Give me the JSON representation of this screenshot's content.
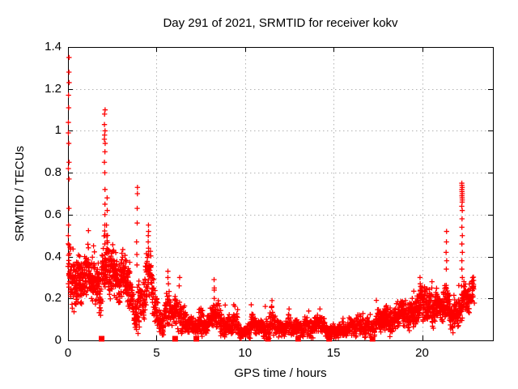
{
  "chart_data": {
    "type": "scatter",
    "title": "Day 291 of 2021, SRMTID for receiver kokv",
    "xlabel": "GPS time / hours",
    "ylabel": "SRMTID / TECUs",
    "xlim": [
      0,
      24
    ],
    "ylim": [
      0,
      1.4
    ],
    "x_tick_values": [
      0,
      5,
      10,
      15,
      20
    ],
    "x_tick_labels": [
      "0",
      "5",
      "10",
      "15",
      "20"
    ],
    "y_tick_values": [
      0,
      0.2,
      0.4,
      0.6,
      0.8,
      1,
      1.2,
      1.4
    ],
    "y_tick_labels": [
      "0",
      "0.2",
      "0.4",
      "0.6",
      "0.8",
      "1",
      "1.2",
      "1.4"
    ],
    "grid": true,
    "legend": "none",
    "marker": "plus",
    "marker_color": "#ff0000",
    "grid_color": "#b3b3b3",
    "axis_color": "#000000",
    "background_color": "#ffffff",
    "data_start_hour": 0.0,
    "data_end_hour": 22.95,
    "band_profile_hour_center_halfspread": [
      [
        0.0,
        0.3,
        0.1
      ],
      [
        0.6,
        0.29,
        0.09
      ],
      [
        1.2,
        0.3,
        0.08
      ],
      [
        1.8,
        0.26,
        0.07
      ],
      [
        2.1,
        0.36,
        0.12
      ],
      [
        2.5,
        0.32,
        0.09
      ],
      [
        3.0,
        0.3,
        0.08
      ],
      [
        3.3,
        0.3,
        0.08
      ],
      [
        3.6,
        0.18,
        0.07
      ],
      [
        3.8,
        0.12,
        0.05
      ],
      [
        3.95,
        0.22,
        0.12
      ],
      [
        4.15,
        0.16,
        0.06
      ],
      [
        4.45,
        0.3,
        0.1
      ],
      [
        4.7,
        0.28,
        0.09
      ],
      [
        4.95,
        0.15,
        0.06
      ],
      [
        5.2,
        0.09,
        0.04
      ],
      [
        5.45,
        0.12,
        0.05
      ],
      [
        5.7,
        0.16,
        0.07
      ],
      [
        5.95,
        0.11,
        0.05
      ],
      [
        6.25,
        0.14,
        0.06
      ],
      [
        6.55,
        0.1,
        0.05
      ],
      [
        6.85,
        0.07,
        0.035
      ],
      [
        7.15,
        0.055,
        0.03
      ],
      [
        7.45,
        0.1,
        0.05
      ],
      [
        7.75,
        0.07,
        0.035
      ],
      [
        8.05,
        0.09,
        0.045
      ],
      [
        8.35,
        0.13,
        0.06
      ],
      [
        8.65,
        0.09,
        0.045
      ],
      [
        9.0,
        0.07,
        0.035
      ],
      [
        9.35,
        0.08,
        0.04
      ],
      [
        9.7,
        0.05,
        0.03
      ],
      [
        10.0,
        0.04,
        0.022
      ],
      [
        10.35,
        0.07,
        0.035
      ],
      [
        10.7,
        0.06,
        0.03
      ],
      [
        11.0,
        0.05,
        0.03
      ],
      [
        11.3,
        0.08,
        0.04
      ],
      [
        11.55,
        0.09,
        0.045
      ],
      [
        11.8,
        0.055,
        0.03
      ],
      [
        12.1,
        0.05,
        0.028
      ],
      [
        12.45,
        0.08,
        0.04
      ],
      [
        12.8,
        0.055,
        0.03
      ],
      [
        13.15,
        0.05,
        0.028
      ],
      [
        13.5,
        0.075,
        0.038
      ],
      [
        13.85,
        0.055,
        0.03
      ],
      [
        14.2,
        0.08,
        0.04
      ],
      [
        14.55,
        0.05,
        0.028
      ],
      [
        14.9,
        0.045,
        0.025
      ],
      [
        15.2,
        0.035,
        0.02
      ],
      [
        15.55,
        0.05,
        0.028
      ],
      [
        15.9,
        0.065,
        0.032
      ],
      [
        16.25,
        0.075,
        0.035
      ],
      [
        16.6,
        0.06,
        0.03
      ],
      [
        16.95,
        0.065,
        0.032
      ],
      [
        17.3,
        0.07,
        0.035
      ],
      [
        17.65,
        0.09,
        0.04
      ],
      [
        18.0,
        0.1,
        0.045
      ],
      [
        18.35,
        0.095,
        0.045
      ],
      [
        18.7,
        0.115,
        0.05
      ],
      [
        19.05,
        0.11,
        0.05
      ],
      [
        19.4,
        0.13,
        0.055
      ],
      [
        19.75,
        0.16,
        0.06
      ],
      [
        20.1,
        0.17,
        0.06
      ],
      [
        20.45,
        0.15,
        0.055
      ],
      [
        20.8,
        0.17,
        0.055
      ],
      [
        21.1,
        0.15,
        0.05
      ],
      [
        21.4,
        0.16,
        0.06
      ],
      [
        21.7,
        0.13,
        0.05
      ],
      [
        22.0,
        0.125,
        0.05
      ],
      [
        22.3,
        0.17,
        0.06
      ],
      [
        22.6,
        0.2,
        0.055
      ],
      [
        22.95,
        0.23,
        0.055
      ]
    ],
    "spike_columns": [
      {
        "hour": 0.04,
        "values": [
          1.35,
          1.28,
          1.23,
          1.17,
          1.11,
          1.04,
          0.99,
          0.94,
          0.85,
          0.82,
          0.77,
          0.63,
          0.55,
          0.5
        ]
      },
      {
        "hour": 2.08,
        "values": [
          1.1,
          1.08,
          1.03,
          1.0,
          0.98,
          0.96,
          0.94,
          0.9,
          0.85,
          0.8,
          0.72,
          0.65,
          0.6,
          0.55,
          0.5,
          0.46
        ]
      },
      {
        "hour": 2.2,
        "values": [
          0.68,
          0.62,
          0.55,
          0.5
        ]
      },
      {
        "hour": 3.9,
        "values": [
          0.73,
          0.7,
          0.63,
          0.56,
          0.47,
          0.41,
          0.36
        ]
      },
      {
        "hour": 4.55,
        "values": [
          0.55,
          0.52,
          0.5,
          0.47,
          0.44,
          0.41
        ]
      },
      {
        "hour": 5.65,
        "values": [
          0.33,
          0.3,
          0.27
        ]
      },
      {
        "hour": 6.3,
        "values": [
          0.3,
          0.26
        ]
      },
      {
        "hour": 8.25,
        "values": [
          0.29,
          0.25,
          0.24,
          0.2
        ]
      },
      {
        "hour": 9.35,
        "values": [
          0.17
        ]
      },
      {
        "hour": 10.35,
        "values": [
          0.17
        ]
      },
      {
        "hour": 11.5,
        "values": [
          0.19,
          0.16
        ]
      },
      {
        "hour": 12.5,
        "values": [
          0.15
        ]
      },
      {
        "hour": 13.6,
        "values": [
          0.14
        ]
      },
      {
        "hour": 14.25,
        "values": [
          0.15
        ]
      },
      {
        "hour": 19.9,
        "values": [
          0.3,
          0.27,
          0.24
        ]
      },
      {
        "hour": 20.55,
        "values": [
          0.28,
          0.25
        ]
      },
      {
        "hour": 21.38,
        "values": [
          0.52,
          0.47,
          0.42,
          0.38,
          0.34
        ]
      },
      {
        "hour": 22.25,
        "values": [
          0.75,
          0.74,
          0.73,
          0.72,
          0.71,
          0.7,
          0.69,
          0.68,
          0.67,
          0.66,
          0.64,
          0.62,
          0.58,
          0.54,
          0.5,
          0.46,
          0.42,
          0.38,
          0.34,
          0.3,
          0.26,
          0.22,
          0.19
        ]
      }
    ],
    "axis_marker_squares_hours": [
      1.9,
      6.05,
      7.25,
      11.3,
      13.0,
      14.75,
      17.2
    ]
  }
}
